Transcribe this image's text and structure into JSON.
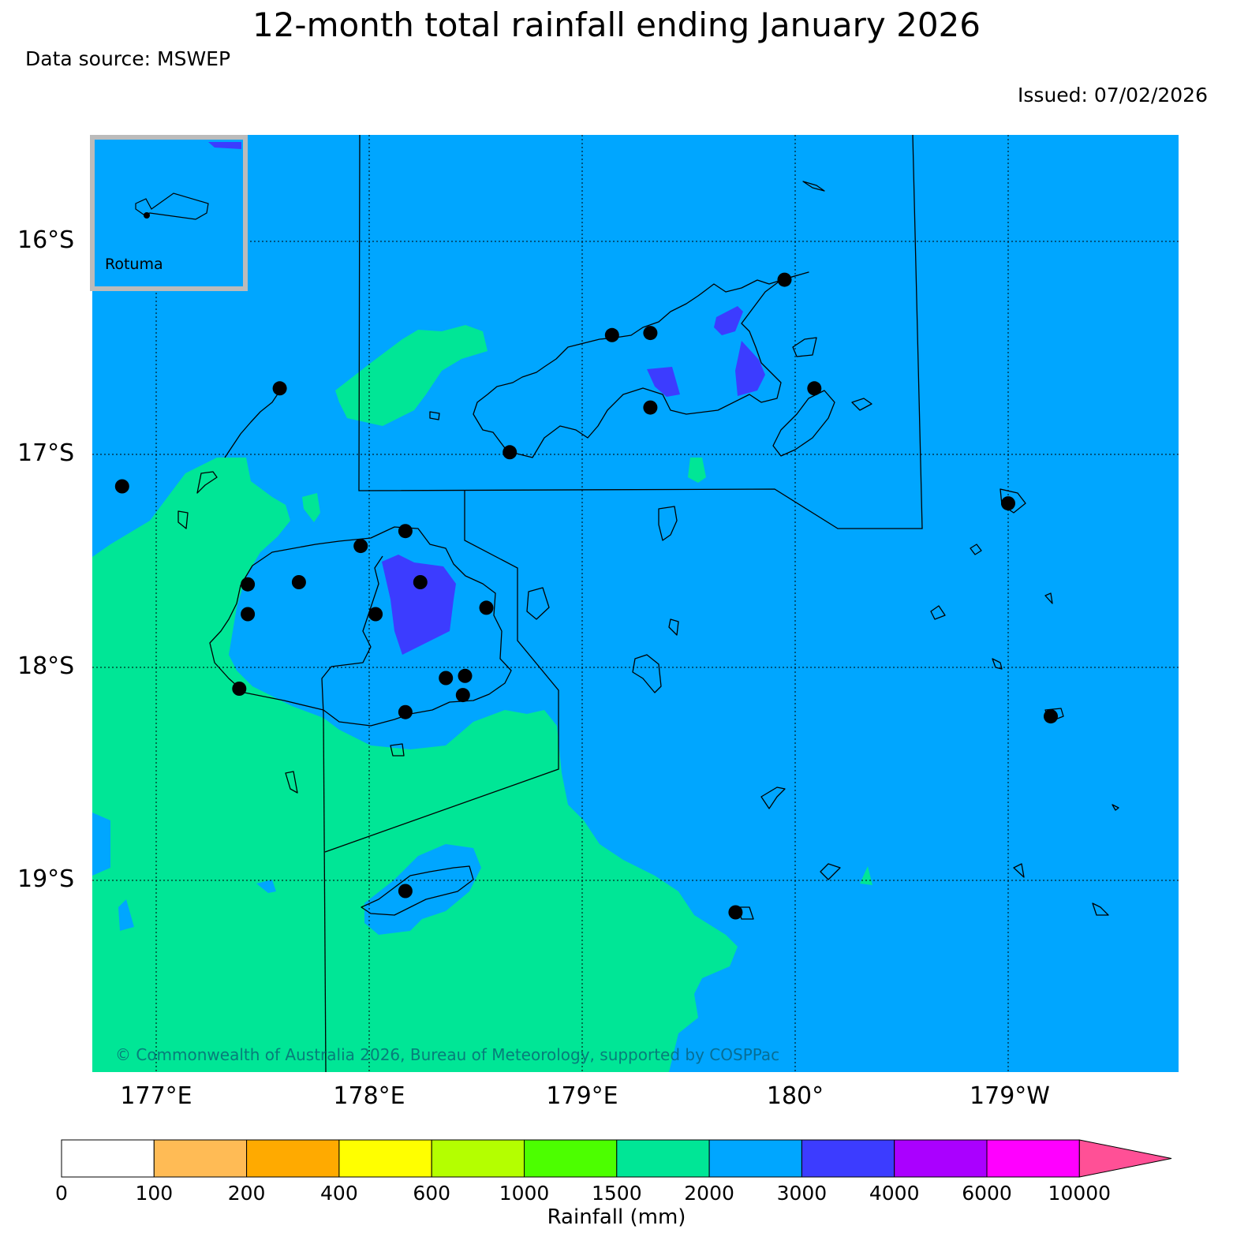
{
  "title": "12-month total rainfall ending January 2026",
  "data_source": "Data source: MSWEP",
  "issued": "Issued: 07/02/2026",
  "copyright": "© Commonwealth of Australia 2026, Bureau of Meteorology, supported by COSPPac",
  "inset_label": "Rotuma",
  "lat_labels": [
    "16°S",
    "17°S",
    "18°S",
    "19°S"
  ],
  "lon_labels": [
    "177°E",
    "178°E",
    "179°E",
    "180°",
    "179°W"
  ],
  "colorbar": {
    "title": "Rainfall (mm)",
    "ticks": [
      "0",
      "100",
      "200",
      "400",
      "600",
      "1000",
      "1500",
      "2000",
      "3000",
      "4000",
      "6000",
      "10000"
    ],
    "colors": [
      "#ffffff",
      "#ffbb55",
      "#ffaa00",
      "#ffff00",
      "#b4ff00",
      "#4cff00",
      "#00e696",
      "#00a6ff",
      "#3c3cff",
      "#aa00ff",
      "#ff00ff",
      "#ff5096"
    ]
  },
  "map_colors": {
    "band_1500_2000": "#00e696",
    "band_2000_3000": "#00a6ff",
    "band_3000_4000": "#3c3cff"
  },
  "stations": [
    {
      "lon": 177.58,
      "lat": -16.69
    },
    {
      "lon": 176.84,
      "lat": -17.15
    },
    {
      "lon": 178.66,
      "lat": -16.99
    },
    {
      "lon": 179.14,
      "lat": -16.44
    },
    {
      "lon": 179.32,
      "lat": -16.43
    },
    {
      "lon": 179.95,
      "lat": -16.18
    },
    {
      "lon": 179.32,
      "lat": -16.78
    },
    {
      "lon": 180.09,
      "lat": -16.69
    },
    {
      "lon": 177.96,
      "lat": -17.43
    },
    {
      "lon": 178.17,
      "lat": -17.36
    },
    {
      "lon": 177.43,
      "lat": -17.61
    },
    {
      "lon": 177.67,
      "lat": -17.6
    },
    {
      "lon": 178.24,
      "lat": -17.6
    },
    {
      "lon": 177.43,
      "lat": -17.75
    },
    {
      "lon": 178.03,
      "lat": -17.75
    },
    {
      "lon": 178.55,
      "lat": -17.72
    },
    {
      "lon": 178.36,
      "lat": -18.05
    },
    {
      "lon": 178.45,
      "lat": -18.04
    },
    {
      "lon": 178.44,
      "lat": -18.13
    },
    {
      "lon": 177.39,
      "lat": -18.1
    },
    {
      "lon": 178.17,
      "lat": -18.21
    },
    {
      "lon": 178.17,
      "lat": -19.05
    },
    {
      "lon": 179.72,
      "lat": -19.15
    },
    {
      "lon": 181.0,
      "lat": -17.23
    },
    {
      "lon": 181.2,
      "lat": -18.23
    }
  ]
}
